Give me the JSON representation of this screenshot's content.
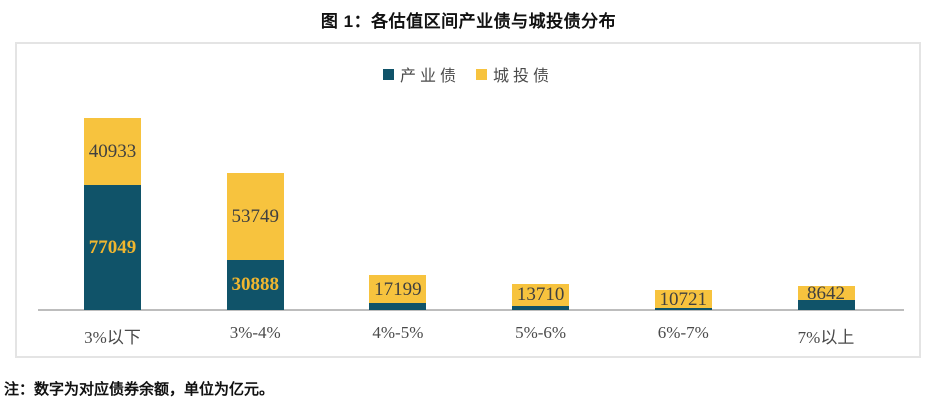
{
  "title": "图 1：各估值区间产业债与城投债分布",
  "note": "注：数字为对应债券余额，单位为亿元。",
  "legend": [
    {
      "name": "产业债",
      "color": "#105369"
    },
    {
      "name": "城投债",
      "color": "#f7c33e"
    }
  ],
  "chart_data": {
    "type": "bar",
    "stacked": true,
    "orientation": "vertical",
    "title": "图 1：各估值区间产业债与城投债分布",
    "value_unit": "亿元",
    "legend_position": "top-center",
    "grid": false,
    "y_axis_visible": false,
    "categories": [
      "3%以下",
      "3%-4%",
      "4%-5%",
      "5%-6%",
      "6%-7%",
      "7%以上"
    ],
    "series": [
      {
        "name": "产业债",
        "color": "#105369",
        "label_color": "#f0b62f",
        "label_bold": true,
        "values": [
          77049,
          30888,
          4300,
          2600,
          1300,
          6000
        ],
        "labels": [
          "77049",
          "30888",
          "",
          "",
          "",
          ""
        ],
        "note": "values without labels are unlabeled small segments, estimated from bar pixel heights"
      },
      {
        "name": "城投债",
        "color": "#f7c33e",
        "label_color": "#404040",
        "label_bold": false,
        "values": [
          40933,
          53749,
          17199,
          13710,
          10721,
          8642
        ],
        "labels": [
          "40933",
          "53749",
          "17199",
          "13710",
          "10721",
          "8642"
        ]
      }
    ]
  }
}
